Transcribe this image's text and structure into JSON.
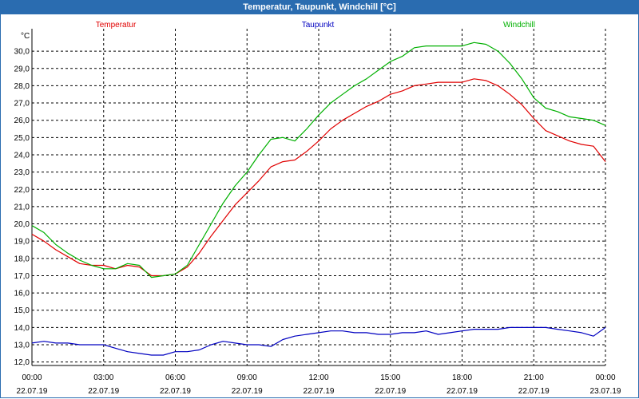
{
  "chart_data": {
    "type": "line",
    "title": "Temperatur, Taupunkt, Windchill [°C]",
    "ylabel": "°C",
    "xlabel": "",
    "ylim": [
      11.8,
      31.3
    ],
    "xlim": [
      0,
      24
    ],
    "grid": true,
    "y_ticks": [
      "12,0",
      "13,0",
      "14,0",
      "15,0",
      "16,0",
      "17,0",
      "18,0",
      "19,0",
      "20,0",
      "21,0",
      "22,0",
      "23,0",
      "24,0",
      "25,0",
      "26,0",
      "27,0",
      "28,0",
      "29,0",
      "30,0"
    ],
    "x_ticks": [
      {
        "time": "00:00",
        "date": "22.07.19"
      },
      {
        "time": "03:00",
        "date": "22.07.19"
      },
      {
        "time": "06:00",
        "date": "22.07.19"
      },
      {
        "time": "09:00",
        "date": "22.07.19"
      },
      {
        "time": "12:00",
        "date": "22.07.19"
      },
      {
        "time": "15:00",
        "date": "22.07.19"
      },
      {
        "time": "18:00",
        "date": "22.07.19"
      },
      {
        "time": "21:00",
        "date": "22.07.19"
      },
      {
        "time": "00:00",
        "date": "23.07.19"
      }
    ],
    "x": [
      0,
      0.5,
      1,
      1.5,
      2,
      2.5,
      3,
      3.5,
      4,
      4.5,
      5,
      5.5,
      6,
      6.5,
      7,
      7.5,
      8,
      8.5,
      9,
      9.5,
      10,
      10.5,
      11,
      11.5,
      12,
      12.5,
      13,
      13.5,
      14,
      14.5,
      15,
      15.5,
      16,
      16.5,
      17,
      17.5,
      18,
      18.5,
      19,
      19.5,
      20,
      20.5,
      21,
      21.5,
      22,
      22.5,
      23,
      23.5,
      24
    ],
    "series": [
      {
        "name": "Temperatur",
        "color": "#e00000",
        "values": [
          19.4,
          19.0,
          18.5,
          18.1,
          17.7,
          17.6,
          17.6,
          17.4,
          17.6,
          17.5,
          17.0,
          17.0,
          17.1,
          17.5,
          18.3,
          19.3,
          20.2,
          21.1,
          21.8,
          22.5,
          23.3,
          23.6,
          23.7,
          24.2,
          24.8,
          25.5,
          26.0,
          26.4,
          26.8,
          27.1,
          27.5,
          27.7,
          28.0,
          28.1,
          28.2,
          28.2,
          28.2,
          28.4,
          28.3,
          28.0,
          27.5,
          26.9,
          26.1,
          25.4,
          25.1,
          24.8,
          24.6,
          24.5,
          23.6
        ]
      },
      {
        "name": "Taupunkt",
        "color": "#0000c0",
        "values": [
          13.1,
          13.2,
          13.1,
          13.1,
          13.0,
          13.0,
          13.0,
          12.8,
          12.6,
          12.5,
          12.4,
          12.4,
          12.6,
          12.6,
          12.7,
          13.0,
          13.2,
          13.1,
          13.0,
          13.0,
          12.9,
          13.3,
          13.5,
          13.6,
          13.7,
          13.8,
          13.8,
          13.7,
          13.7,
          13.6,
          13.6,
          13.7,
          13.7,
          13.8,
          13.6,
          13.7,
          13.8,
          13.9,
          13.9,
          13.9,
          14.0,
          14.0,
          14.0,
          14.0,
          13.9,
          13.8,
          13.7,
          13.5,
          14.0
        ]
      },
      {
        "name": "Windchill",
        "color": "#00b000",
        "values": [
          19.9,
          19.5,
          18.8,
          18.3,
          17.9,
          17.6,
          17.4,
          17.4,
          17.7,
          17.6,
          16.9,
          17.0,
          17.1,
          17.6,
          18.8,
          20.0,
          21.2,
          22.2,
          23.0,
          24.0,
          24.9,
          25.0,
          24.8,
          25.5,
          26.3,
          27.0,
          27.5,
          28.0,
          28.4,
          28.9,
          29.4,
          29.7,
          30.2,
          30.3,
          30.3,
          30.3,
          30.3,
          30.5,
          30.4,
          30.0,
          29.3,
          28.4,
          27.3,
          26.7,
          26.5,
          26.2,
          26.1,
          26.0,
          25.7
        ]
      }
    ]
  }
}
